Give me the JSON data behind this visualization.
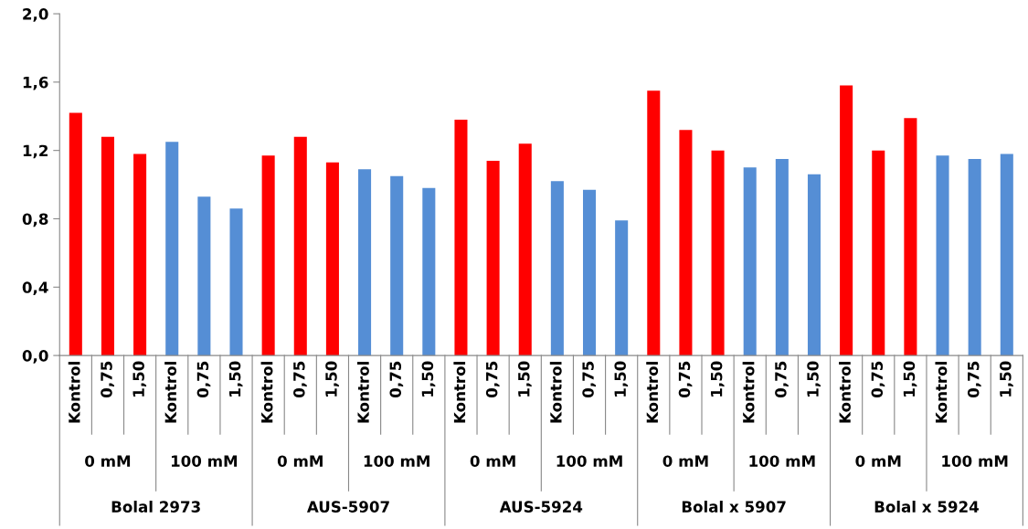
{
  "chart_data": {
    "type": "bar",
    "categories": [
      "Kontrol",
      "0,75",
      "1,50",
      "Kontrol",
      "0,75",
      "1,50",
      "Kontrol",
      "0,75",
      "1,50",
      "Kontrol",
      "0,75",
      "1,50",
      "Kontrol",
      "0,75",
      "1,50",
      "Kontrol",
      "0,75",
      "1,50",
      "Kontrol",
      "0,75",
      "1,50",
      "Kontrol",
      "0,75",
      "1,50",
      "Kontrol",
      "0,75",
      "1,50",
      "Kontrol",
      "0,75",
      "1,50"
    ],
    "values": [
      1.42,
      1.28,
      1.18,
      1.25,
      0.93,
      0.86,
      1.17,
      1.28,
      1.13,
      1.09,
      1.05,
      0.98,
      1.38,
      1.14,
      1.24,
      1.02,
      0.97,
      0.79,
      1.55,
      1.32,
      1.2,
      1.1,
      1.15,
      1.06,
      1.58,
      1.2,
      1.39,
      1.17,
      1.15,
      1.18
    ],
    "colors": [
      "#ff0000",
      "#ff0000",
      "#ff0000",
      "#558ed5",
      "#558ed5",
      "#558ed5",
      "#ff0000",
      "#ff0000",
      "#ff0000",
      "#558ed5",
      "#558ed5",
      "#558ed5",
      "#ff0000",
      "#ff0000",
      "#ff0000",
      "#558ed5",
      "#558ed5",
      "#558ed5",
      "#ff0000",
      "#ff0000",
      "#ff0000",
      "#558ed5",
      "#558ed5",
      "#558ed5",
      "#ff0000",
      "#ff0000",
      "#ff0000",
      "#558ed5",
      "#558ed5",
      "#558ed5"
    ],
    "ylim": [
      0,
      2.0
    ],
    "yticks": [
      {
        "value": 0,
        "label": "0,0"
      },
      {
        "value": 0.4,
        "label": "0,4"
      },
      {
        "value": 0.8,
        "label": "0,8"
      },
      {
        "value": 1.2,
        "label": "1,2"
      },
      {
        "value": 1.6,
        "label": "1,6"
      },
      {
        "value": 2.0,
        "label": "2,0"
      }
    ],
    "annotations": [
      "0 mM",
      "100 mM",
      "0 mM",
      "100 mM",
      "0 mM",
      "100 mM",
      "0 mM",
      "100 mM",
      "0 mM",
      "100 mM",
      "Bolal 2973",
      "AUS-5907",
      "AUS-5924",
      "Bolal x 5907",
      "Bolal x 5924"
    ]
  }
}
